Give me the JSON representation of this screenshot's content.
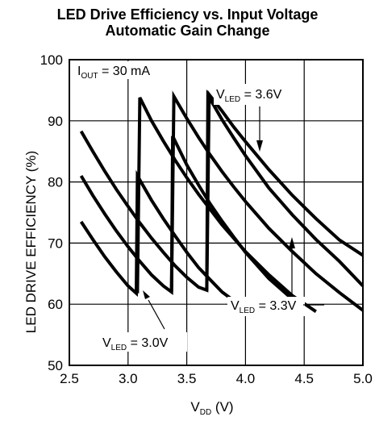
{
  "chart_data": {
    "type": "line",
    "title": "LED Drive Efficiency vs. Input Voltage",
    "subtitle": "Automatic Gain Change",
    "xlabel": {
      "main": "V",
      "sub": "DD",
      "unit": " (V)"
    },
    "ylabel": "LED DRIVE EFFICIENCY (%)",
    "xlim": [
      2.5,
      5.0
    ],
    "ylim": [
      50,
      100
    ],
    "xticks": [
      2.5,
      3.0,
      3.5,
      4.0,
      4.5,
      5.0
    ],
    "xtick_labels": [
      "2.5",
      "3.0",
      "3.5",
      "4.0",
      "4.5",
      "5.0"
    ],
    "yticks": [
      50,
      60,
      70,
      80,
      90,
      100
    ],
    "ytick_labels": [
      "50",
      "60",
      "70",
      "80",
      "90",
      "100"
    ],
    "grid": true,
    "series": [
      {
        "points": [
          [
            2.6,
            73.5
          ],
          [
            2.7,
            70.6
          ],
          [
            2.8,
            67.8
          ],
          [
            2.9,
            65.3
          ],
          [
            3.0,
            63.0
          ],
          [
            3.07,
            61.8
          ],
          [
            3.08,
            81.0
          ],
          [
            3.2,
            77.0
          ],
          [
            3.3,
            74.0
          ],
          [
            3.4,
            71.2
          ],
          [
            3.5,
            68.5
          ],
          [
            3.6,
            66.0
          ],
          [
            3.7,
            64.0
          ],
          [
            3.8,
            62.0
          ],
          [
            3.9,
            60.6
          ],
          [
            4.0,
            60.0
          ]
        ]
      },
      {
        "points": [
          [
            2.6,
            81.0
          ],
          [
            2.7,
            77.8
          ],
          [
            2.8,
            74.8
          ],
          [
            2.9,
            72.0
          ],
          [
            3.0,
            69.4
          ],
          [
            3.1,
            67.0
          ],
          [
            3.2,
            64.8
          ],
          [
            3.3,
            63.0
          ],
          [
            3.37,
            62.0
          ],
          [
            3.38,
            87.5
          ],
          [
            3.5,
            82.8
          ],
          [
            3.6,
            79.5
          ],
          [
            3.7,
            76.4
          ],
          [
            3.8,
            73.6
          ],
          [
            3.9,
            71.0
          ],
          [
            4.0,
            68.5
          ],
          [
            4.2,
            64.2
          ],
          [
            4.4,
            60.8
          ],
          [
            4.5,
            59.5
          ]
        ]
      },
      {
        "points": [
          [
            2.6,
            88.3
          ],
          [
            2.7,
            85.0
          ],
          [
            2.8,
            81.8
          ],
          [
            2.9,
            78.8
          ],
          [
            3.0,
            76.0
          ],
          [
            3.1,
            73.3
          ],
          [
            3.2,
            70.8
          ],
          [
            3.3,
            68.5
          ],
          [
            3.4,
            66.3
          ],
          [
            3.5,
            64.4
          ],
          [
            3.6,
            62.8
          ],
          [
            3.67,
            62.3
          ],
          [
            3.68,
            94.2
          ],
          [
            3.8,
            90.2
          ],
          [
            3.9,
            87.2
          ],
          [
            4.0,
            84.3
          ],
          [
            4.2,
            79.0
          ],
          [
            4.4,
            74.6
          ],
          [
            4.6,
            70.6
          ],
          [
            4.8,
            67.0
          ],
          [
            5.0,
            63.0
          ]
        ]
      },
      {
        "points": [
          [
            3.08,
            61.8
          ],
          [
            3.1,
            93.8
          ],
          [
            3.2,
            90.0
          ],
          [
            3.3,
            86.7
          ],
          [
            3.4,
            83.6
          ],
          [
            3.5,
            80.7
          ],
          [
            3.6,
            78.0
          ],
          [
            3.8,
            73.0
          ],
          [
            4.0,
            68.6
          ],
          [
            4.2,
            64.8
          ],
          [
            4.4,
            61.4
          ],
          [
            4.6,
            58.8
          ]
        ]
      },
      {
        "points": [
          [
            3.37,
            62.0
          ],
          [
            3.39,
            94.0
          ],
          [
            3.5,
            90.4
          ],
          [
            3.6,
            87.3
          ],
          [
            3.7,
            84.4
          ],
          [
            3.8,
            81.7
          ],
          [
            3.9,
            79.2
          ],
          [
            4.0,
            76.8
          ],
          [
            4.2,
            72.4
          ],
          [
            4.4,
            68.6
          ],
          [
            4.6,
            65.0
          ],
          [
            4.8,
            61.9
          ],
          [
            5.0,
            59.0
          ]
        ]
      },
      {
        "points": [
          [
            3.67,
            62.3
          ],
          [
            3.69,
            94.3
          ],
          [
            3.8,
            91.6
          ],
          [
            3.9,
            89.0
          ],
          [
            4.0,
            86.6
          ],
          [
            4.2,
            82.0
          ],
          [
            4.4,
            77.8
          ],
          [
            4.6,
            74.0
          ],
          [
            4.8,
            70.5
          ],
          [
            5.0,
            68.0
          ]
        ]
      }
    ],
    "annotations": [
      {
        "main": "I",
        "sub": "OUT",
        "rest": " = 30 mA"
      },
      {
        "main": "V",
        "sub": "LED",
        "rest": " = 3.6V"
      },
      {
        "main": "V",
        "sub": "LED",
        "rest": " = 3.3V"
      },
      {
        "main": "V",
        "sub": "LED",
        "rest": " = 3.0V"
      }
    ]
  }
}
